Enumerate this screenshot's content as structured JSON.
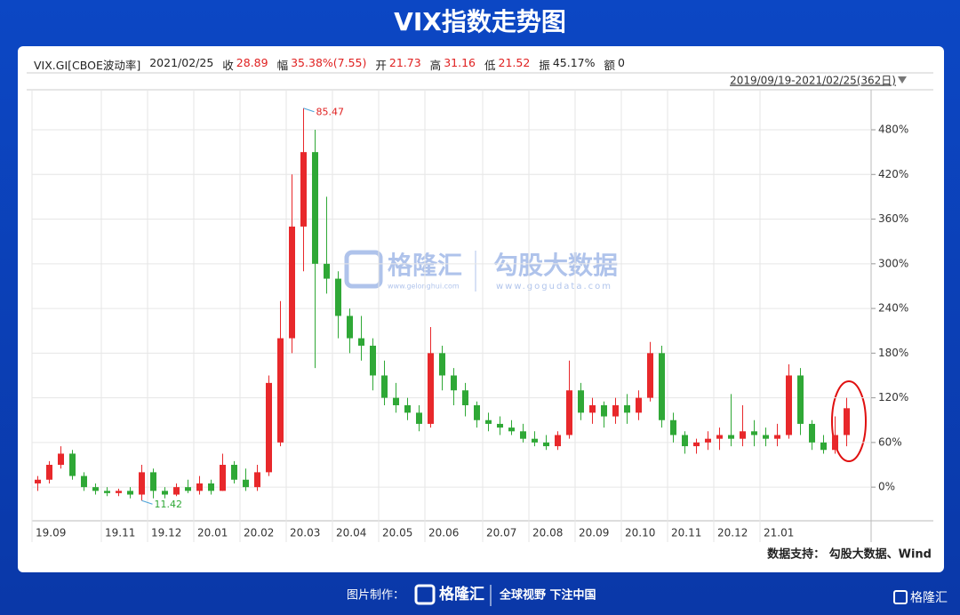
{
  "title": "VIX指数走势图",
  "header": {
    "symbol": "VIX.GI[CBOE波动率]",
    "date": "2021/02/25",
    "fields": [
      {
        "label": "收",
        "value": 28.89,
        "color": "#e02020"
      },
      {
        "label": "幅",
        "value": "35.38%(7.55)",
        "color": "#e02020"
      },
      {
        "label": "开",
        "value": 21.73,
        "color": "#e02020"
      },
      {
        "label": "高",
        "value": 31.16,
        "color": "#e02020"
      },
      {
        "label": "低",
        "value": 21.52,
        "color": "#e02020"
      },
      {
        "label": "振",
        "value": "45.17%",
        "color": "#222"
      },
      {
        "label": "额",
        "value": 0,
        "color": "#222"
      }
    ],
    "range": "2019/09/19-2021/02/25(362日)"
  },
  "watermark": {
    "brand": "格隆汇",
    "brand_url": "www.gelonghui.com",
    "data_brand": "勾股大数据",
    "data_url": "www.gogudata.com"
  },
  "footer": {
    "source": "数据支持： 勾股大数据、Wind",
    "made_by": "图片制作：",
    "logo": "格隆汇",
    "slogan": "全球视野 下注中国",
    "corner_logo": "格隆汇"
  },
  "chart_data": {
    "type": "candlestick",
    "up_color": "#e8282b",
    "down_color": "#2fa836",
    "grid": true,
    "categories": [
      "19.09",
      null,
      null,
      null,
      null,
      null,
      "19.11",
      null,
      null,
      null,
      "19.12",
      null,
      null,
      null,
      "20.01",
      null,
      null,
      null,
      "20.02",
      null,
      null,
      null,
      "20.03",
      null,
      null,
      null,
      "20.04",
      null,
      null,
      null,
      "20.05",
      null,
      null,
      null,
      "20.06",
      null,
      null,
      null,
      null,
      "20.07",
      null,
      null,
      null,
      "20.08",
      null,
      null,
      null,
      "20.09",
      null,
      null,
      null,
      "20.10",
      null,
      null,
      null,
      "20.11",
      null,
      null,
      null,
      "20.12",
      null,
      null,
      null,
      "21.01",
      null,
      null,
      null,
      null,
      null,
      null,
      null
    ],
    "open": [
      5,
      10,
      30,
      45,
      15,
      0,
      -5,
      -8,
      -5,
      -10,
      20,
      -5,
      -10,
      0,
      -5,
      5,
      -5,
      30,
      10,
      0,
      20,
      60,
      200,
      350,
      450,
      300,
      280,
      230,
      200,
      190,
      150,
      120,
      110,
      100,
      85,
      180,
      150,
      130,
      110,
      90,
      85,
      80,
      75,
      65,
      60,
      55,
      70,
      130,
      100,
      110,
      95,
      110,
      100,
      120,
      180,
      90,
      70,
      55,
      60,
      65,
      70,
      65,
      75,
      70,
      65,
      70,
      150,
      85,
      60,
      50,
      70
    ],
    "high": [
      15,
      35,
      55,
      50,
      20,
      5,
      0,
      -2,
      0,
      30,
      25,
      0,
      5,
      10,
      15,
      10,
      45,
      35,
      25,
      30,
      150,
      250,
      420,
      509,
      480,
      390,
      290,
      240,
      230,
      200,
      170,
      140,
      120,
      110,
      215,
      190,
      160,
      140,
      115,
      100,
      95,
      90,
      85,
      75,
      70,
      75,
      170,
      140,
      120,
      115,
      120,
      125,
      130,
      195,
      190,
      100,
      75,
      65,
      75,
      80,
      125,
      110,
      90,
      80,
      85,
      165,
      160,
      90,
      70,
      95,
      120
    ],
    "low": [
      -5,
      5,
      25,
      10,
      -5,
      -10,
      -12,
      -12,
      -15,
      -18,
      -15,
      -15,
      -12,
      -8,
      -10,
      -10,
      -5,
      5,
      -5,
      -5,
      15,
      55,
      180,
      290,
      160,
      260,
      200,
      180,
      170,
      130,
      110,
      100,
      90,
      75,
      80,
      130,
      110,
      95,
      80,
      75,
      70,
      70,
      60,
      55,
      50,
      50,
      65,
      90,
      85,
      80,
      85,
      85,
      90,
      115,
      80,
      60,
      45,
      45,
      50,
      50,
      55,
      55,
      55,
      55,
      55,
      65,
      70,
      50,
      45,
      45,
      55
    ],
    "close": [
      10,
      30,
      45,
      15,
      0,
      -5,
      -8,
      -5,
      -10,
      20,
      -5,
      -10,
      0,
      -5,
      5,
      -5,
      30,
      10,
      0,
      20,
      140,
      200,
      350,
      450,
      300,
      280,
      230,
      200,
      190,
      150,
      120,
      110,
      100,
      85,
      180,
      150,
      130,
      110,
      90,
      85,
      80,
      75,
      65,
      60,
      55,
      70,
      130,
      100,
      110,
      95,
      110,
      100,
      120,
      180,
      90,
      70,
      55,
      60,
      65,
      70,
      65,
      75,
      70,
      65,
      70,
      150,
      85,
      60,
      50,
      70,
      106
    ],
    "ylim": [
      -44,
      523
    ],
    "yticks": [
      {
        "value": 0,
        "label": "0%"
      },
      {
        "value": 60,
        "label": "60%"
      },
      {
        "value": 120,
        "label": "120%"
      },
      {
        "value": 180,
        "label": "180%"
      },
      {
        "value": 240,
        "label": "240%"
      },
      {
        "value": 300,
        "label": "300%"
      },
      {
        "value": 360,
        "label": "360%"
      },
      {
        "value": 420,
        "label": "420%"
      },
      {
        "value": 480,
        "label": "480%"
      }
    ],
    "annotations": [
      {
        "text": "85.47",
        "index": 23,
        "at": "high"
      },
      {
        "text": "11.42",
        "index": 9,
        "at": "low"
      }
    ]
  }
}
